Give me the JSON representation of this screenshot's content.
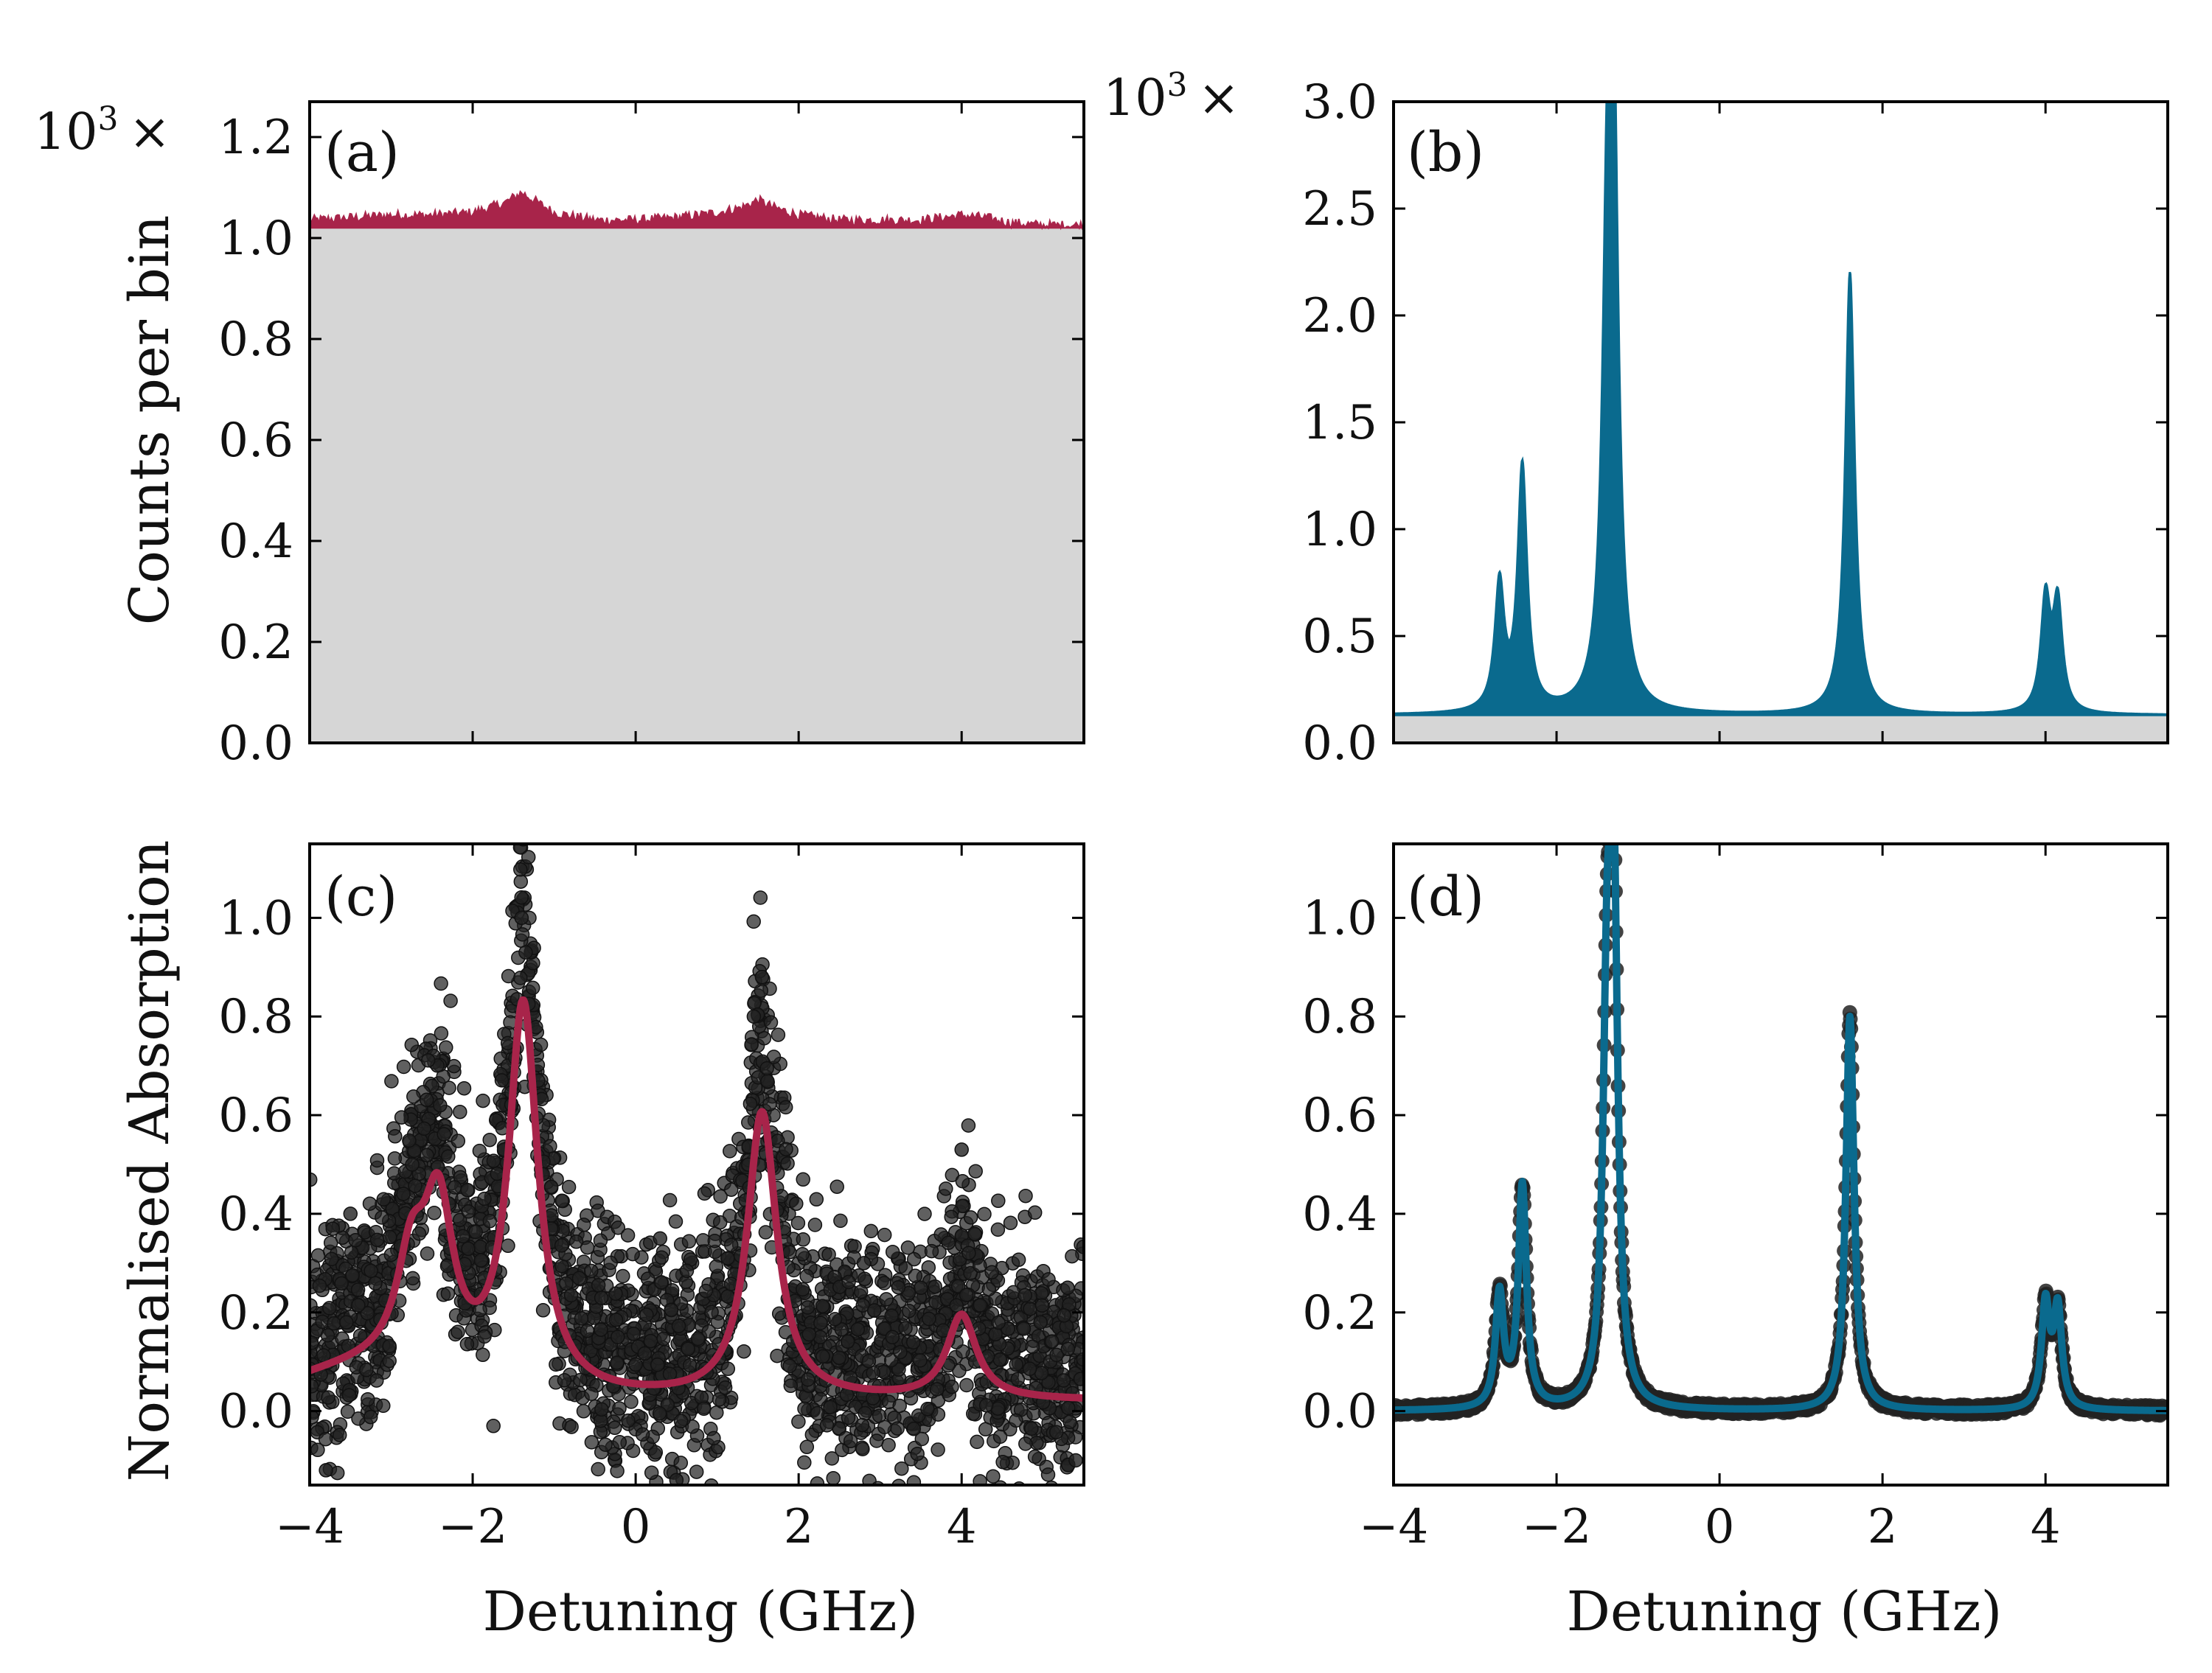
{
  "colors": {
    "crimson": "#a8244a",
    "teal": "#0a6a8e",
    "dark": "#222222",
    "fill_gray": "#d6d6d6"
  },
  "axis_titles": {
    "ylabel_top": "Counts per bin",
    "ylabel_bottom": "Normalised Absorption",
    "xlabel_c": "Detuning (GHz)",
    "xlabel_d": "Detuning (GHz)"
  },
  "multipliers": {
    "a": {
      "base": "10",
      "exp": "3",
      "times": "×"
    },
    "b": {
      "base": "10",
      "exp": "3",
      "times": "×"
    }
  },
  "chart_data": [
    {
      "id": "a",
      "type": "area",
      "label": "(a)",
      "xlim": [
        -4,
        5.5
      ],
      "ylim": [
        0,
        1.27
      ],
      "ylabel": "Counts per bin",
      "yscale_note": "10^3 ×",
      "yticks": [
        "0.0",
        "0.2",
        "0.4",
        "0.6",
        "0.8",
        "1.0",
        "1.2"
      ],
      "ytick_values": [
        0,
        0.2,
        0.4,
        0.6,
        0.8,
        1.0,
        1.2
      ],
      "xticks_shown": false,
      "xtick_values": [
        -2,
        0,
        2,
        4
      ],
      "baseline": 1.02,
      "x": [
        -4.0,
        -3.5,
        -3.0,
        -2.5,
        -2.0,
        -1.6,
        -1.4,
        -1.2,
        -1.0,
        -0.5,
        0.0,
        0.5,
        1.0,
        1.3,
        1.5,
        1.7,
        2.0,
        2.5,
        3.0,
        3.5,
        4.0,
        4.3,
        4.6,
        5.0,
        5.5
      ],
      "y": [
        1.035,
        1.04,
        1.045,
        1.045,
        1.05,
        1.07,
        1.09,
        1.07,
        1.05,
        1.035,
        1.035,
        1.04,
        1.05,
        1.06,
        1.075,
        1.06,
        1.045,
        1.035,
        1.035,
        1.035,
        1.045,
        1.04,
        1.03,
        1.025,
        1.025
      ]
    },
    {
      "id": "b",
      "type": "area",
      "label": "(b)",
      "xlim": [
        -4,
        5.5
      ],
      "ylim": [
        0,
        3.0
      ],
      "yscale_note": "10^3 ×",
      "yticks": [
        "0.0",
        "0.5",
        "1.0",
        "1.5",
        "2.0",
        "2.5",
        "3.0"
      ],
      "ytick_values": [
        0,
        0.5,
        1.0,
        1.5,
        2.0,
        2.5,
        3.0
      ],
      "xticks_shown": false,
      "xtick_values": [
        -2,
        0,
        2,
        4
      ],
      "baseline": 0.13,
      "peaks": [
        {
          "x": -2.7,
          "height": 0.72
        },
        {
          "x": -2.42,
          "height": 1.27
        },
        {
          "x": -1.38,
          "height": 1.98
        },
        {
          "x": -1.3,
          "height": 2.73
        },
        {
          "x": 1.6,
          "height": 2.2
        },
        {
          "x": 4.0,
          "height": 0.65
        },
        {
          "x": 4.15,
          "height": 0.63
        }
      ]
    },
    {
      "id": "c",
      "type": "scatter",
      "label": "(c)",
      "xlim": [
        -4,
        5.5
      ],
      "ylim": [
        -0.15,
        1.15
      ],
      "xlabel": "Detuning (GHz)",
      "ylabel": "Normalised Absorption",
      "xticks": [
        "−4",
        "−2",
        "0",
        "2",
        "4"
      ],
      "xtick_values": [
        -4,
        -2,
        0,
        2,
        4
      ],
      "yticks": [
        "0.0",
        "0.2",
        "0.4",
        "0.6",
        "0.8",
        "1.0"
      ],
      "ytick_values": [
        0,
        0.2,
        0.4,
        0.6,
        0.8,
        1.0
      ],
      "scatter_noise_sd": 0.12,
      "scatter_samples": [
        {
          "x": -1.4,
          "y": 1.0
        },
        {
          "x": -1.35,
          "y": 0.93
        },
        {
          "x": 1.55,
          "y": 0.88
        },
        {
          "x": 1.45,
          "y": 0.8
        },
        {
          "x": 4.0,
          "y": 0.53
        },
        {
          "x": -2.4,
          "y": 0.62
        },
        {
          "x": -3.5,
          "y": 0.4
        },
        {
          "x": -3.8,
          "y": -0.12
        },
        {
          "x": 0.3,
          "y": 0.35
        },
        {
          "x": 0.5,
          "y": -0.14
        },
        {
          "x": 2.8,
          "y": 0.3
        },
        {
          "x": 3.5,
          "y": 0.25
        },
        {
          "x": 5.3,
          "y": 0.25
        },
        {
          "x": 5.4,
          "y": -0.1
        }
      ],
      "fit_line": {
        "baseline": 0.0,
        "peaks": [
          {
            "x": -2.75,
            "height": 0.2
          },
          {
            "x": -2.42,
            "height": 0.32
          },
          {
            "x": -1.38,
            "height": 0.78
          },
          {
            "x": 1.55,
            "height": 0.58
          },
          {
            "x": 4.0,
            "height": 0.17
          }
        ]
      }
    },
    {
      "id": "d",
      "type": "scatter",
      "label": "(d)",
      "xlim": [
        -4,
        5.5
      ],
      "ylim": [
        -0.15,
        1.15
      ],
      "xlabel": "Detuning (GHz)",
      "xticks": [
        "−4",
        "−2",
        "0",
        "2",
        "4"
      ],
      "xtick_values": [
        -4,
        -2,
        0,
        2,
        4
      ],
      "yticks": [
        "0.0",
        "0.2",
        "0.4",
        "0.6",
        "0.8",
        "1.0"
      ],
      "ytick_values": [
        0,
        0.2,
        0.4,
        0.6,
        0.8,
        1.0
      ],
      "peaks": [
        {
          "x": -2.7,
          "height": 0.23
        },
        {
          "x": -2.42,
          "height": 0.45
        },
        {
          "x": -1.38,
          "height": 0.72
        },
        {
          "x": -1.3,
          "height": 1.0
        },
        {
          "x": 1.6,
          "height": 0.8
        },
        {
          "x": 4.0,
          "height": 0.21
        },
        {
          "x": 4.15,
          "height": 0.2
        }
      ]
    }
  ]
}
